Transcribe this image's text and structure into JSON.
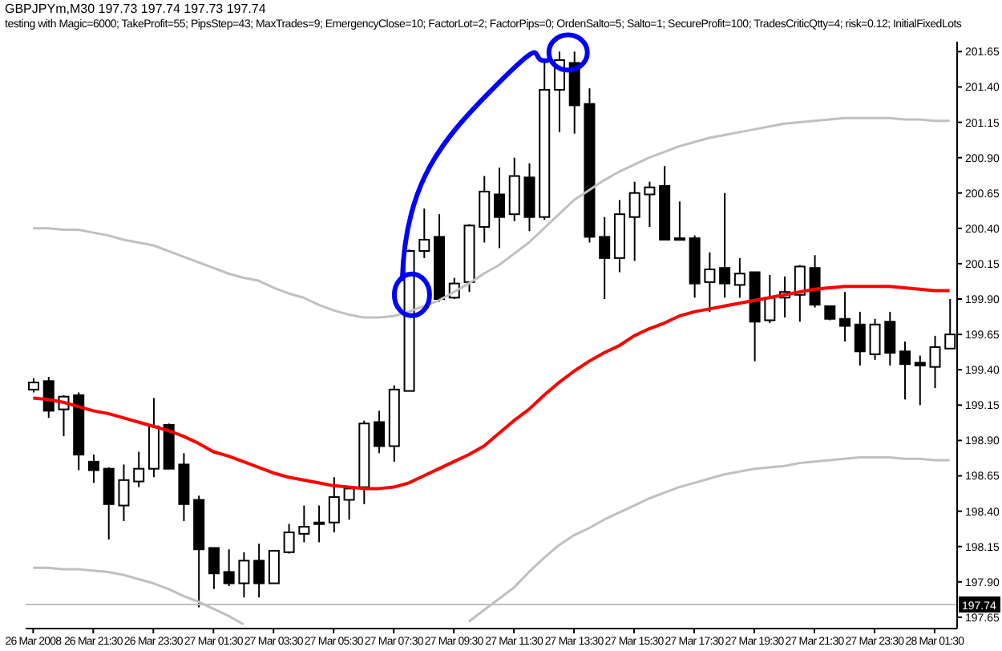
{
  "chart_data": {
    "type": "candlestick",
    "title": "GBPJPYm,M30  197.73 197.74 197.73 197.74",
    "subtitle": "testing with Magic=6000; TakeProfit=55; PipsStep=43; MaxTrades=9; EmergencyClose=10; FactorLot=2; FactorPips=0; OrdenSalto=5; Salto=1; SecureProfit=100; TradesCriticQtty=4; risk=0.12; InitialFixedLots",
    "categories": [
      "26 Mar 2008",
      null,
      null,
      null,
      "26 Mar 21:30",
      null,
      null,
      null,
      "26 Mar 23:30",
      null,
      null,
      null,
      "27 Mar 01:30",
      null,
      null,
      null,
      "27 Mar 03:30",
      null,
      null,
      null,
      "27 Mar 05:30",
      null,
      null,
      null,
      "27 Mar 07:30",
      null,
      null,
      null,
      "27 Mar 09:30",
      null,
      null,
      null,
      "27 Mar 11:30",
      null,
      null,
      null,
      "27 Mar 13:30",
      null,
      null,
      null,
      "27 Mar 15:30",
      null,
      null,
      null,
      "27 Mar 17:30",
      null,
      null,
      null,
      "27 Mar 19:30",
      null,
      null,
      null,
      "27 Mar 21:30",
      null,
      null,
      null,
      "27 Mar 23:30",
      null,
      null,
      null,
      "28 Mar 01:30",
      null
    ],
    "ohlc": [
      [
        199.26,
        199.34,
        199.24,
        199.31
      ],
      [
        199.32,
        199.35,
        199.06,
        199.11
      ],
      [
        199.12,
        199.22,
        198.93,
        199.21
      ],
      [
        199.22,
        199.24,
        198.69,
        198.8
      ],
      [
        198.75,
        198.8,
        198.6,
        198.69
      ],
      [
        198.7,
        198.71,
        198.2,
        198.45
      ],
      [
        198.44,
        198.73,
        198.33,
        198.62
      ],
      [
        198.61,
        198.82,
        198.57,
        198.7
      ],
      [
        198.7,
        199.2,
        198.64,
        199.0
      ],
      [
        199.01,
        199.02,
        198.7,
        198.7
      ],
      [
        198.73,
        198.81,
        198.33,
        198.45
      ],
      [
        198.48,
        198.51,
        197.72,
        198.13
      ],
      [
        198.14,
        198.14,
        197.85,
        197.96
      ],
      [
        197.97,
        198.13,
        197.87,
        197.89
      ],
      [
        197.89,
        198.11,
        197.79,
        198.05
      ],
      [
        198.05,
        198.17,
        197.79,
        197.89
      ],
      [
        197.89,
        198.12,
        197.89,
        198.12
      ],
      [
        198.11,
        198.31,
        198.1,
        198.25
      ],
      [
        198.24,
        198.44,
        198.18,
        198.29
      ],
      [
        198.31,
        198.44,
        198.18,
        198.32
      ],
      [
        198.32,
        198.64,
        198.25,
        198.5
      ],
      [
        198.48,
        198.57,
        198.34,
        198.56
      ],
      [
        198.57,
        199.04,
        198.45,
        199.02
      ],
      [
        199.03,
        199.11,
        198.81,
        198.86
      ],
      [
        198.86,
        199.29,
        198.75,
        199.26
      ],
      [
        199.25,
        200.25,
        199.25,
        200.24
      ],
      [
        200.24,
        200.54,
        200.19,
        200.32
      ],
      [
        200.34,
        200.5,
        199.88,
        199.9
      ],
      [
        199.91,
        200.05,
        199.9,
        200.01
      ],
      [
        200.02,
        200.43,
        199.95,
        200.42
      ],
      [
        200.41,
        200.77,
        200.3,
        200.66
      ],
      [
        200.64,
        200.83,
        200.26,
        200.48
      ],
      [
        200.5,
        200.9,
        200.45,
        200.77
      ],
      [
        200.76,
        200.86,
        200.38,
        200.48
      ],
      [
        200.48,
        201.58,
        200.46,
        201.38
      ],
      [
        201.38,
        201.65,
        201.08,
        201.59
      ],
      [
        201.57,
        201.65,
        201.07,
        201.27
      ],
      [
        201.28,
        201.39,
        200.3,
        200.34
      ],
      [
        200.34,
        200.48,
        199.9,
        200.19
      ],
      [
        200.19,
        200.6,
        200.09,
        200.5
      ],
      [
        200.48,
        200.73,
        200.17,
        200.65
      ],
      [
        200.64,
        200.73,
        200.41,
        200.69
      ],
      [
        200.7,
        200.84,
        200.32,
        200.32
      ],
      [
        200.33,
        200.59,
        200.32,
        200.32
      ],
      [
        200.33,
        200.35,
        199.91,
        200.01
      ],
      [
        200.02,
        200.23,
        199.81,
        200.11
      ],
      [
        200.12,
        200.65,
        199.91,
        200.01
      ],
      [
        200.0,
        200.19,
        199.91,
        200.08
      ],
      [
        200.09,
        200.09,
        199.46,
        199.74
      ],
      [
        199.75,
        200.07,
        199.73,
        199.91
      ],
      [
        199.91,
        200.06,
        199.77,
        199.95
      ],
      [
        199.93,
        200.14,
        199.74,
        200.13
      ],
      [
        200.12,
        200.21,
        199.84,
        199.86
      ],
      [
        199.85,
        199.85,
        199.75,
        199.76
      ],
      [
        199.76,
        199.95,
        199.6,
        199.71
      ],
      [
        199.72,
        199.81,
        199.43,
        199.53
      ],
      [
        199.51,
        199.76,
        199.47,
        199.72
      ],
      [
        199.74,
        199.81,
        199.43,
        199.52
      ],
      [
        199.53,
        199.6,
        199.19,
        199.44
      ],
      [
        199.45,
        199.5,
        199.15,
        199.43
      ],
      [
        199.42,
        199.64,
        199.27,
        199.56
      ],
      [
        199.55,
        199.9,
        199.55,
        199.65
      ]
    ],
    "series": [
      {
        "type": "line",
        "color": "#ff0000",
        "values": [
          199.2,
          199.19,
          199.17,
          199.14,
          199.11,
          199.09,
          199.06,
          199.03,
          199.0,
          198.97,
          198.93,
          198.88,
          198.82,
          198.79,
          198.75,
          198.71,
          198.67,
          198.64,
          198.62,
          198.6,
          198.58,
          198.57,
          198.56,
          198.56,
          198.57,
          198.6,
          198.65,
          198.7,
          198.75,
          198.8,
          198.86,
          198.95,
          199.04,
          199.12,
          199.22,
          199.31,
          199.39,
          199.46,
          199.52,
          199.57,
          199.64,
          199.69,
          199.73,
          199.78,
          199.81,
          199.83,
          199.85,
          199.87,
          199.89,
          199.91,
          199.93,
          199.95,
          199.97,
          199.98,
          199.99,
          199.99,
          199.99,
          199.99,
          199.98,
          199.97,
          199.96,
          199.96
        ]
      },
      {
        "type": "line",
        "color": "#c0c0c0",
        "values": [
          200.4,
          200.4,
          200.39,
          200.39,
          200.37,
          200.35,
          200.32,
          200.3,
          200.28,
          200.24,
          200.2,
          200.16,
          200.12,
          200.08,
          200.05,
          200.03,
          199.98,
          199.94,
          199.91,
          199.86,
          199.82,
          199.79,
          199.77,
          199.77,
          199.78,
          199.81,
          199.85,
          199.89,
          199.95,
          200.01,
          200.08,
          200.14,
          200.22,
          200.3,
          200.4,
          200.5,
          200.6,
          200.67,
          200.74,
          200.8,
          200.85,
          200.9,
          200.94,
          200.98,
          201.01,
          201.04,
          201.06,
          201.08,
          201.1,
          201.12,
          201.14,
          201.15,
          201.16,
          201.17,
          201.18,
          201.18,
          201.18,
          201.18,
          201.17,
          201.17,
          201.16,
          201.16
        ]
      },
      {
        "type": "line",
        "color": "#c0c0c0",
        "values": [
          198.0,
          198.0,
          197.99,
          197.99,
          197.98,
          197.97,
          197.95,
          197.92,
          197.89,
          197.85,
          197.8,
          197.76,
          197.71,
          197.66,
          197.6,
          null,
          null,
          null,
          null,
          null,
          null,
          null,
          null,
          null,
          null,
          null,
          null,
          null,
          null,
          197.62,
          197.7,
          197.78,
          197.86,
          197.97,
          198.07,
          198.16,
          198.23,
          198.28,
          198.34,
          198.39,
          198.44,
          198.49,
          198.53,
          198.57,
          198.6,
          198.63,
          198.66,
          198.68,
          198.7,
          198.71,
          198.72,
          198.74,
          198.75,
          198.76,
          198.77,
          198.78,
          198.78,
          198.78,
          198.77,
          198.77,
          198.76,
          198.76
        ]
      }
    ],
    "ylim": [
      197.57,
      201.72
    ],
    "yticks": [
      {
        "value": 201.65,
        "label": "201.65"
      },
      {
        "value": 201.4,
        "label": "201.40"
      },
      {
        "value": 201.15,
        "label": "201.15"
      },
      {
        "value": 200.9,
        "label": "200.90"
      },
      {
        "value": 200.65,
        "label": "200.65"
      },
      {
        "value": 200.4,
        "label": "200.40"
      },
      {
        "value": 200.15,
        "label": "200.15"
      },
      {
        "value": 199.9,
        "label": "199.90"
      },
      {
        "value": 199.65,
        "label": "199.65"
      },
      {
        "value": 199.4,
        "label": "199.40"
      },
      {
        "value": 199.15,
        "label": "199.15"
      },
      {
        "value": 198.9,
        "label": "198.90"
      },
      {
        "value": 198.65,
        "label": "198.65"
      },
      {
        "value": 198.4,
        "label": "198.40"
      },
      {
        "value": 198.15,
        "label": "198.15"
      },
      {
        "value": 197.9,
        "label": "197.90"
      },
      {
        "value": 197.65,
        "label": "197.65"
      }
    ],
    "ref_lines": [
      {
        "axis": "y",
        "value": 197.74,
        "label": "197.74",
        "color": "#c0c0c0"
      }
    ]
  }
}
